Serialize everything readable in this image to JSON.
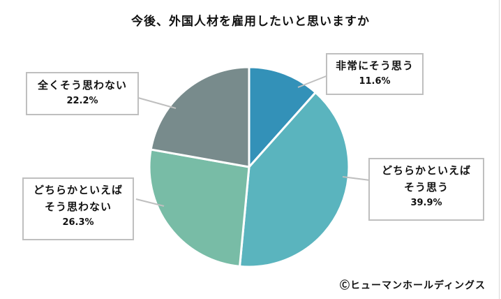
{
  "chart_data": {
    "type": "pie",
    "title": "今後、外国人材を雇用したいと思いますか",
    "categories": [
      "非常にそう思う",
      "どちらかといえばそう思う",
      "どちらかといえばそう思わない",
      "全くそう思わない"
    ],
    "values": [
      11.6,
      39.9,
      26.3,
      22.2
    ],
    "unit": "%",
    "colors": [
      "#3391b8",
      "#5ab4be",
      "#78bca6",
      "#788b8c"
    ],
    "start_angle": "12 o'clock, clockwise",
    "legend": "none (callout labels)"
  },
  "title": "今後、外国人材を雇用したいと思いますか",
  "callouts": {
    "very_agree": {
      "label": "非常にそう思う",
      "pct": "11.6%"
    },
    "somewhat_agree": {
      "label_line1": "どちらかといえば",
      "label_line2": "そう思う",
      "pct": "39.9%"
    },
    "somewhat_disagree": {
      "label_line1": "どちらかといえば",
      "label_line2": "そう思わない",
      "pct": "26.3%"
    },
    "not_at_all": {
      "label": "全くそう思わない",
      "pct": "22.2%"
    }
  },
  "credit": "Ⓒヒューマンホールディングス"
}
